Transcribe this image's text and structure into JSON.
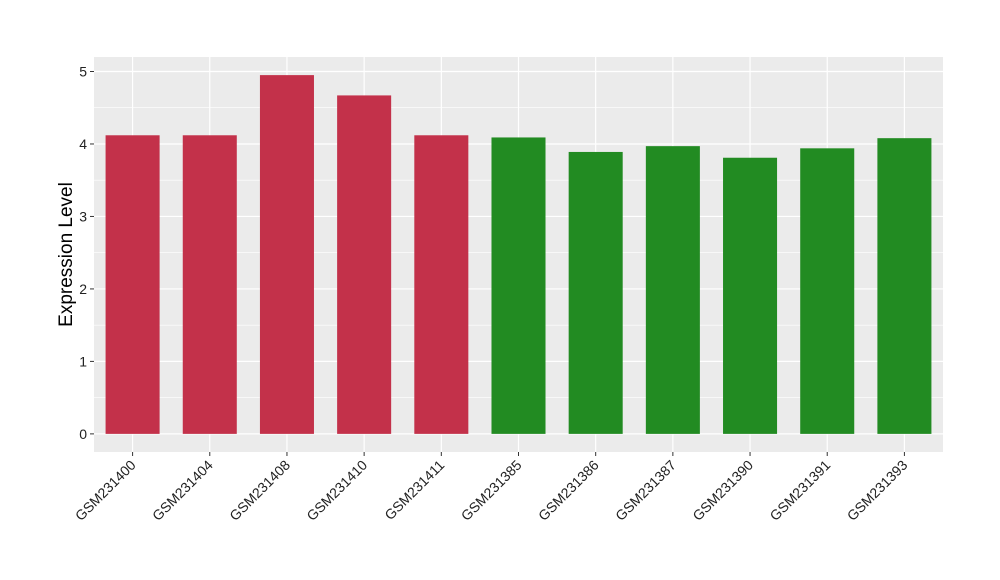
{
  "chart_data": {
    "type": "bar",
    "title": "",
    "xlabel": "",
    "ylabel": "Expression Level",
    "ylim": [
      -0.25,
      5.2
    ],
    "yticks": [
      0,
      1,
      2,
      3,
      4,
      5
    ],
    "grid": true,
    "categories": [
      "GSM231400",
      "GSM231404",
      "GSM231408",
      "GSM231410",
      "GSM231411",
      "GSM231385",
      "GSM231386",
      "GSM231387",
      "GSM231390",
      "GSM231391",
      "GSM231393"
    ],
    "values": [
      4.12,
      4.12,
      4.95,
      4.67,
      4.12,
      4.09,
      3.89,
      3.97,
      3.81,
      3.94,
      4.08
    ],
    "bar_colors": [
      "#C3314A",
      "#C3314A",
      "#C3314A",
      "#C3314A",
      "#C3314A",
      "#228B22",
      "#228B22",
      "#228B22",
      "#228B22",
      "#228B22",
      "#228B22"
    ],
    "panel_background": "#EBEBEB",
    "grid_color": "#FFFFFF"
  }
}
